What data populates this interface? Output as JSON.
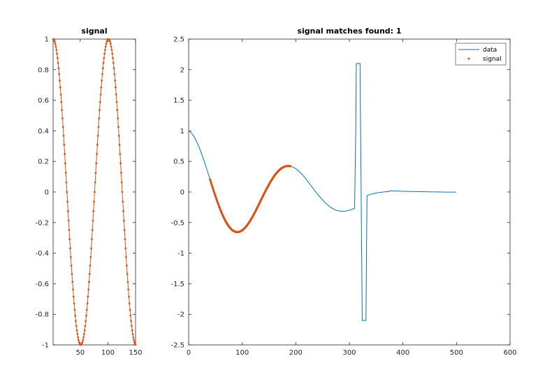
{
  "colors": {
    "data": "#0072bd",
    "signal": "#d95319",
    "axis": "#262626"
  },
  "chart_data": [
    {
      "type": "line",
      "title": "signal",
      "xlabel": "",
      "ylabel": "",
      "xlim": [
        1,
        150
      ],
      "ylim": [
        -1,
        1
      ],
      "xticks": [
        50,
        100,
        150
      ],
      "yticks": [
        -1,
        -0.8,
        -0.6,
        -0.4,
        -0.2,
        0,
        0.2,
        0.4,
        0.6,
        0.8,
        1
      ],
      "grid": false,
      "series": [
        {
          "style": "line-with-dot-markers",
          "color": "#d95319",
          "formula": "cos(2*pi*(x-1)/100)",
          "x_range": [
            1,
            150
          ],
          "samples_shown": 150
        }
      ]
    },
    {
      "type": "line",
      "title": "signal matches found: 1",
      "xlabel": "",
      "ylabel": "",
      "xlim": [
        0,
        600
      ],
      "ylim": [
        -2.5,
        2.5
      ],
      "xticks": [
        0,
        100,
        200,
        300,
        400,
        500,
        600
      ],
      "yticks": [
        -2.5,
        -2,
        -1.5,
        -1,
        -0.5,
        0,
        0.5,
        1,
        1.5,
        2,
        2.5
      ],
      "grid": false,
      "legend": {
        "placement": "top-right",
        "entries": [
          "data",
          "signal"
        ]
      },
      "series": [
        {
          "name": "data",
          "style": "line",
          "color": "#0072bd",
          "x_range": [
            0,
            500
          ],
          "points": [
            [
              0,
              1.0
            ],
            [
              40,
              0.36
            ],
            [
              97,
              -0.82
            ],
            [
              190,
              0.42
            ],
            [
              285,
              -0.14
            ],
            [
              310,
              -0.12
            ],
            [
              312,
              1.0
            ],
            [
              313,
              2.1
            ],
            [
              320,
              2.1
            ],
            [
              321,
              1.0
            ],
            [
              322,
              0.0
            ],
            [
              323,
              -1.0
            ],
            [
              324,
              -2.1
            ],
            [
              331,
              -2.1
            ],
            [
              332,
              -1.0
            ],
            [
              333,
              -0.06
            ],
            [
              370,
              0.02
            ],
            [
              500,
              -0.01
            ]
          ]
        },
        {
          "name": "signal",
          "style": "dot-markers",
          "color": "#d95319",
          "x_range": [
            40,
            190
          ],
          "y_range_shown": [
            -0.82,
            0.42
          ]
        }
      ]
    }
  ]
}
